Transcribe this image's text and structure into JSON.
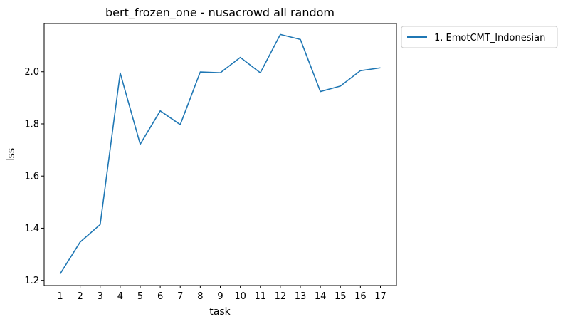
{
  "chart_data": {
    "type": "line",
    "title": "bert_frozen_one - nusacrowd all random",
    "xlabel": "task",
    "ylabel": "lss",
    "x": [
      1,
      2,
      3,
      4,
      5,
      6,
      7,
      8,
      9,
      10,
      11,
      12,
      13,
      14,
      15,
      16,
      17
    ],
    "xlim": [
      0.2,
      17.8
    ],
    "ylim": [
      1.18,
      2.185
    ],
    "yticks": [
      1.2,
      1.4,
      1.6,
      1.8,
      2.0
    ],
    "ytick_labels": [
      "1.2",
      "1.4",
      "1.6",
      "1.8",
      "2.0"
    ],
    "xtick_labels": [
      "1",
      "2",
      "3",
      "4",
      "5",
      "6",
      "7",
      "8",
      "9",
      "10",
      "11",
      "12",
      "13",
      "14",
      "15",
      "16",
      "17"
    ],
    "grid": false,
    "legend": "outside-top-right",
    "series": [
      {
        "name": "1. EmotCMT_Indonesian",
        "color": "#1f77b4",
        "values": [
          1.225,
          1.347,
          1.414,
          1.995,
          1.722,
          1.85,
          1.797,
          1.999,
          1.996,
          2.055,
          1.996,
          2.143,
          2.124,
          1.924,
          1.945,
          2.004,
          2.015
        ]
      }
    ]
  }
}
